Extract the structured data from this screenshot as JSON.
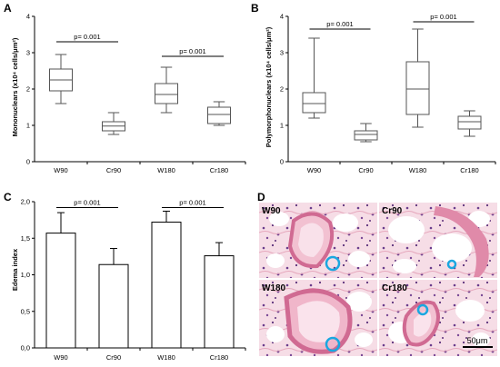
{
  "chart_data": [
    {
      "panel": "A",
      "type": "boxplot",
      "ylabel": "Mononuclears (x10⁴ cells/μm²)",
      "ylim": [
        0,
        4
      ],
      "yticks": [
        "0",
        "1",
        "2",
        "3",
        "4"
      ],
      "categories": [
        "W90",
        "Cr90",
        "W180",
        "Cr180"
      ],
      "boxes": [
        {
          "min": 1.6,
          "q1": 1.95,
          "median": 2.25,
          "q3": 2.55,
          "max": 2.95
        },
        {
          "min": 0.75,
          "q1": 0.85,
          "median": 0.98,
          "q3": 1.1,
          "max": 1.35
        },
        {
          "min": 1.35,
          "q1": 1.6,
          "median": 1.85,
          "q3": 2.15,
          "max": 2.6
        },
        {
          "min": 1.0,
          "q1": 1.05,
          "median": 1.3,
          "q3": 1.5,
          "max": 1.65
        }
      ],
      "annotations": [
        {
          "text": "p= 0.001",
          "from": 0,
          "to": 1,
          "y": 3.3
        },
        {
          "text": "p= 0.001",
          "from": 2,
          "to": 3,
          "y": 2.9
        }
      ]
    },
    {
      "panel": "B",
      "type": "boxplot",
      "ylabel": "Polymorphonuclears (x10⁴ cells/μm²)",
      "ylim": [
        0,
        4
      ],
      "yticks": [
        "0",
        "1",
        "2",
        "3",
        "4"
      ],
      "categories": [
        "W90",
        "Cr90",
        "W180",
        "Cr180"
      ],
      "boxes": [
        {
          "min": 1.2,
          "q1": 1.35,
          "median": 1.6,
          "q3": 1.9,
          "max": 3.4
        },
        {
          "min": 0.55,
          "q1": 0.6,
          "median": 0.75,
          "q3": 0.85,
          "max": 1.05
        },
        {
          "min": 0.95,
          "q1": 1.3,
          "median": 2.0,
          "q3": 2.75,
          "max": 3.65
        },
        {
          "min": 0.7,
          "q1": 0.9,
          "median": 1.1,
          "q3": 1.25,
          "max": 1.4
        }
      ],
      "annotations": [
        {
          "text": "p= 0.001",
          "from": 0,
          "to": 1,
          "y": 3.65
        },
        {
          "text": "p= 0.001",
          "from": 2,
          "to": 3,
          "y": 3.85
        }
      ]
    },
    {
      "panel": "C",
      "type": "bar",
      "ylabel": "Edema index",
      "ylim": [
        0,
        2
      ],
      "yticks": [
        "0,0",
        "0,5",
        "1,0",
        "1,5",
        "2,0"
      ],
      "categories": [
        "W90",
        "Cr90",
        "W180",
        "Cr180"
      ],
      "values": [
        1.57,
        1.14,
        1.72,
        1.26
      ],
      "errors": [
        0.28,
        0.22,
        0.15,
        0.18
      ],
      "annotations": [
        {
          "text": "p= 0.001",
          "from": 0,
          "to": 1,
          "y": 1.92
        },
        {
          "text": "p= 0.001",
          "from": 2,
          "to": 3,
          "y": 1.92
        }
      ]
    }
  ],
  "histology": {
    "panel": "D",
    "labels": [
      "W90",
      "Cr90",
      "W180",
      "Cr180"
    ],
    "scale_bar": "50μm",
    "circle_color": "#1aa7e0"
  }
}
